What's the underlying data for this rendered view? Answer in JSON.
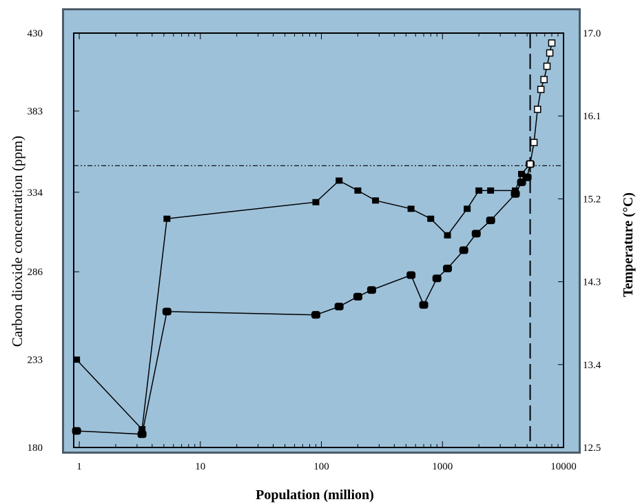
{
  "chart_data": {
    "type": "line",
    "xlabel": "Population  (million)",
    "ylabel_left": "Carbon dioxide concentration  (ppm)",
    "ylabel_right": "Temperature (°C)",
    "x_scale": "log",
    "xlim": [
      0.9,
      10000
    ],
    "ylim_left": [
      180,
      430
    ],
    "ylim_right": [
      12.5,
      17.0
    ],
    "x_ticks": [
      "1",
      "10",
      "100",
      "1000",
      "10000"
    ],
    "y_ticks_left": [
      "180",
      "233",
      "286",
      "334",
      "383",
      "430"
    ],
    "y_ticks_right": [
      "12.5",
      "13.4",
      "14.3",
      "15.2",
      "16.1",
      "17.0"
    ],
    "colors": {
      "plot_background": "#9dc1d9",
      "frame": "#4d5b69",
      "series": "#000000"
    },
    "reference_lines": [
      {
        "orientation": "horizontal",
        "style": "dash-dot-dot",
        "y": 350
      },
      {
        "orientation": "vertical",
        "style": "dashed",
        "x": 5300
      }
    ],
    "series": [
      {
        "axis": "left",
        "marker": "square",
        "x": [
          0.95,
          3.3,
          5.3,
          90,
          140,
          200,
          280,
          550,
          800,
          1100,
          1600,
          2000,
          2500,
          4000,
          4500,
          5300
        ],
        "values": [
          233,
          191,
          318,
          328,
          341,
          335,
          329,
          324,
          318,
          308,
          324,
          335,
          335,
          335,
          345,
          351
        ]
      },
      {
        "axis": "left",
        "marker": "filled-circle",
        "x": [
          0.95,
          3.3,
          5.3,
          90,
          140,
          200,
          260,
          550,
          700,
          900,
          1100,
          1500,
          1900,
          2500,
          4000,
          4500,
          5000,
          5300
        ],
        "values": [
          190,
          188,
          262,
          260,
          265,
          271,
          275,
          284,
          266,
          282,
          288,
          299,
          309,
          317,
          333,
          340,
          343,
          351
        ]
      },
      {
        "axis": "left",
        "marker": "open-square",
        "x": [
          5300,
          5700,
          6100,
          6500,
          6900,
          7300,
          7700,
          8000
        ],
        "values": [
          351,
          364,
          384,
          396,
          402,
          410,
          418,
          424
        ]
      }
    ]
  }
}
